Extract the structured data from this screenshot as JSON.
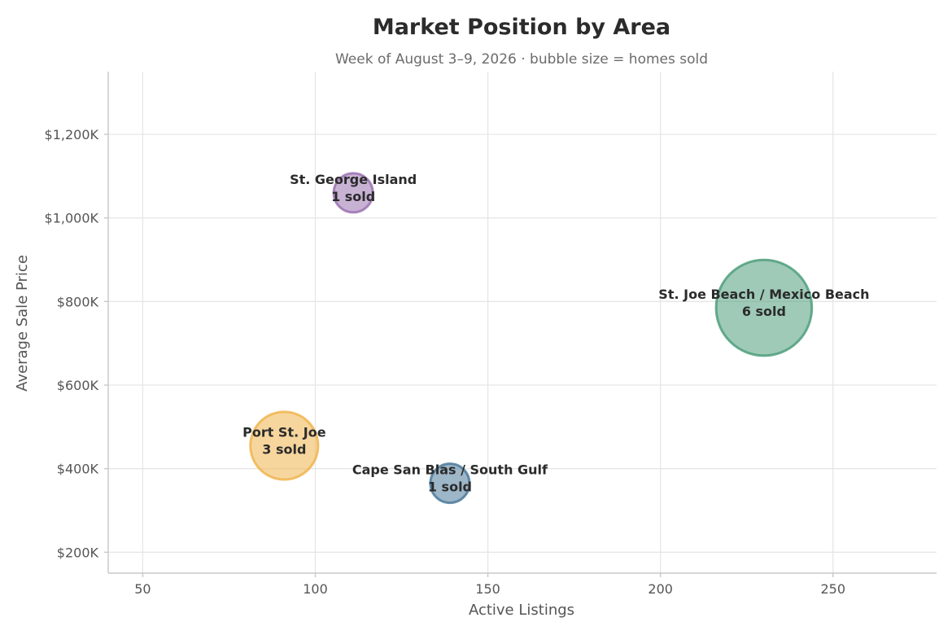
{
  "chart_data": {
    "type": "scatter",
    "title": "Market Position by Area",
    "subtitle": "Week of August 3–9, 2026  ·  bubble size = homes sold",
    "xlabel": "Active Listings",
    "ylabel": "Average Sale Price",
    "xlim": [
      40,
      280
    ],
    "ylim": [
      150,
      1350
    ],
    "x_ticks": [
      50,
      100,
      150,
      200,
      250
    ],
    "y_ticks": [
      200,
      400,
      600,
      800,
      1000,
      1200
    ],
    "x_tick_labels": [
      "50",
      "100",
      "150",
      "200",
      "250"
    ],
    "y_tick_labels": [
      "$200K",
      "$400K",
      "$600K",
      "$800K",
      "$1,000K",
      "$1,200K"
    ],
    "grid": true,
    "series": [
      {
        "area": "St. George Island",
        "x": 111,
        "y": 1060,
        "sold": 1,
        "sold_label": "1 sold",
        "color": "#9b72b0"
      },
      {
        "area": "St. Joe Beach / Mexico Beach",
        "x": 230,
        "y": 785,
        "sold": 6,
        "sold_label": "6 sold",
        "color": "#4f9f7c"
      },
      {
        "area": "Port St. Joe",
        "x": 91,
        "y": 455,
        "sold": 3,
        "sold_label": "3 sold",
        "color": "#f0b54f"
      },
      {
        "area": "Cape San Blas / South Gulf",
        "x": 139,
        "y": 365,
        "sold": 1,
        "sold_label": "1 sold",
        "color": "#4c7a9b"
      }
    ]
  }
}
